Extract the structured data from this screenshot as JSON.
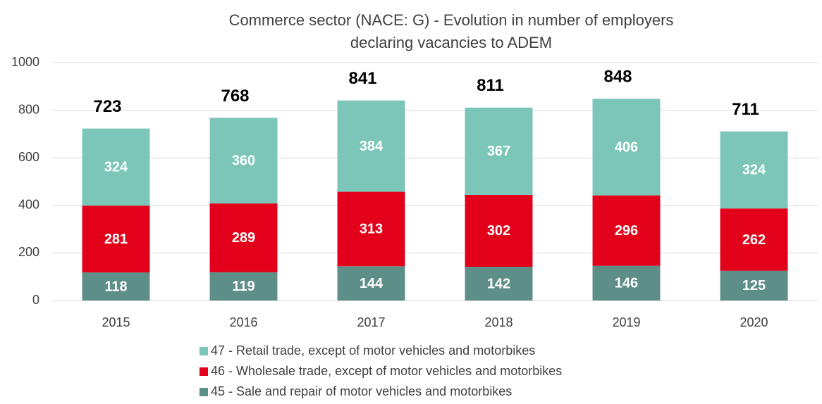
{
  "chart_data": {
    "type": "stacked_bar",
    "title": [
      "Commerce sector (NACE: G) - Evolution in number of employers",
      "declaring vacancies to ADEM"
    ],
    "categories": [
      "2015",
      "2016",
      "2017",
      "2018",
      "2019",
      "2020"
    ],
    "series": [
      {
        "name": "45 - Sale and repair of motor vehicles and motorbikes",
        "color": "#5e8e88",
        "values": [
          118,
          119,
          144,
          142,
          146,
          125
        ]
      },
      {
        "name": "46 - Wholesale trade, except of motor vehicles and motorbikes",
        "color": "#e2001a",
        "values": [
          281,
          289,
          313,
          302,
          296,
          262
        ]
      },
      {
        "name": "47 - Retail trade, except of motor vehicles and motorbikes",
        "color": "#7bc6b8",
        "values": [
          324,
          360,
          384,
          367,
          406,
          324
        ]
      }
    ],
    "totals": [
      723,
      768,
      841,
      811,
      848,
      711
    ],
    "ylim": [
      0,
      1000
    ],
    "yticks": [
      0,
      200,
      400,
      600,
      800,
      1000
    ],
    "grid": true
  }
}
